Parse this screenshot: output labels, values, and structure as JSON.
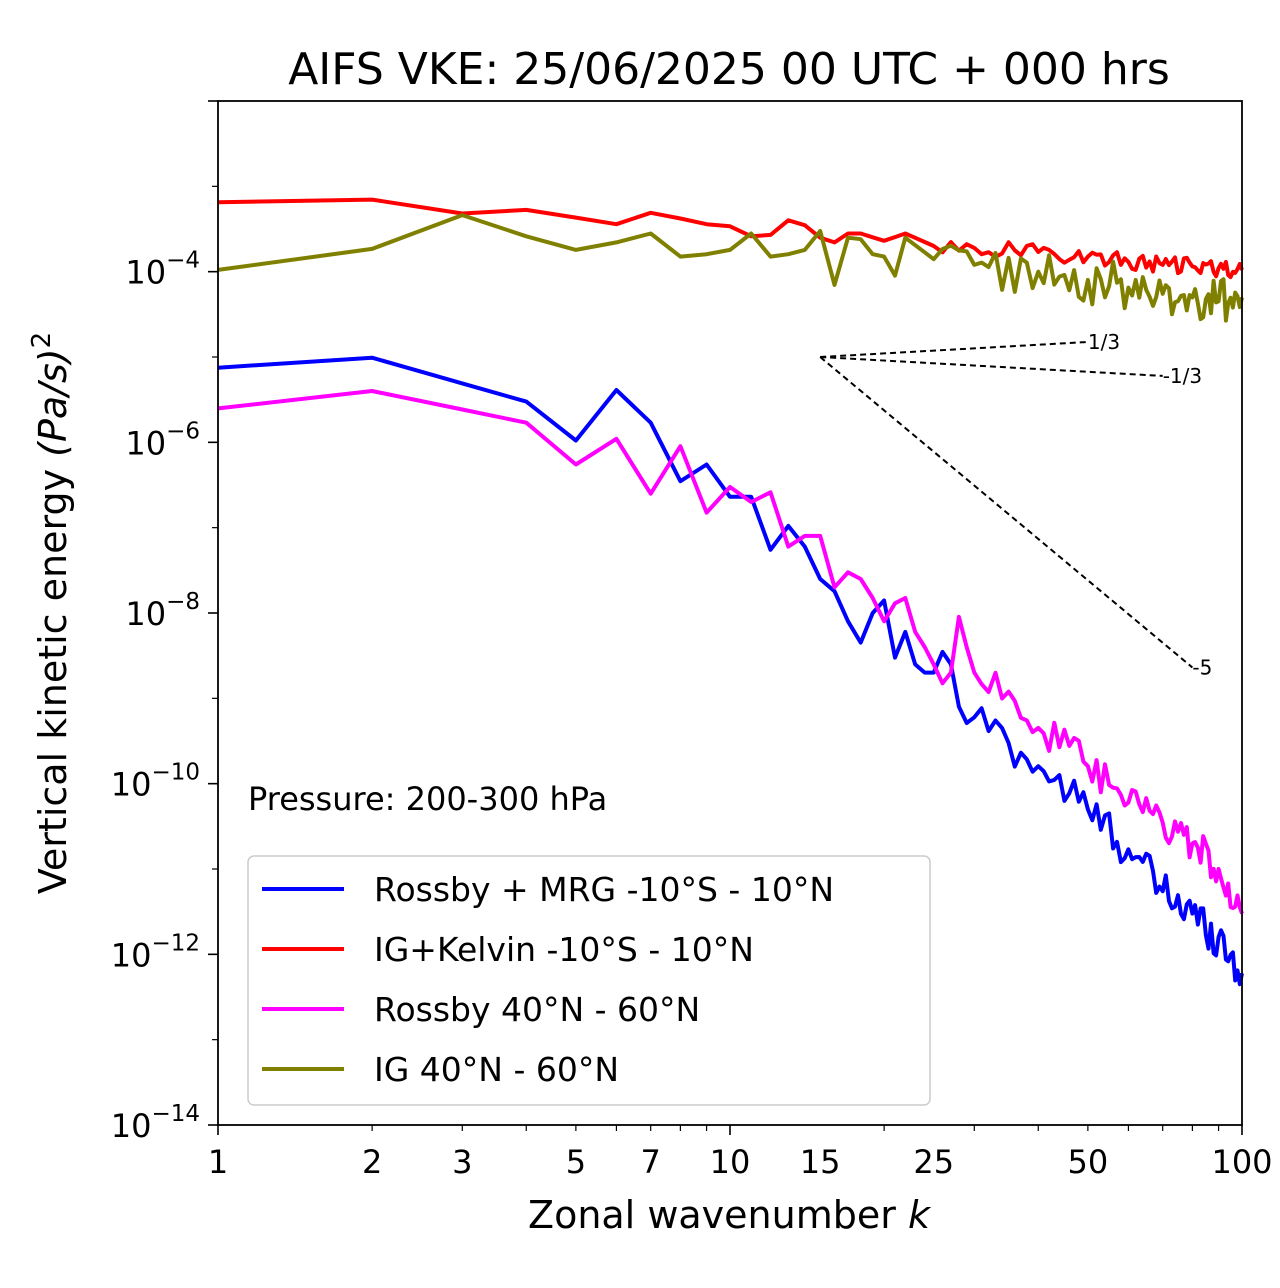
{
  "chart_data": {
    "type": "line",
    "title": "AIFS VKE: 25/06/2025 00 UTC + 000 hrs",
    "xlabel": "Zonal wavenumber k",
    "xlabel_main": "Zonal wavenumber ",
    "xlabel_var": "k",
    "ylabel": "Vertical kinetic energy (Pa/s)^2",
    "ylabel_main": "Vertical kinetic energy ",
    "ylabel_var": "(Pa/s)",
    "ylabel_exp": "2",
    "x_scale": "log",
    "y_scale": "log",
    "xlim": [
      1,
      100
    ],
    "ylim": [
      1e-14,
      0.01
    ],
    "x_ticks": [
      1,
      2,
      3,
      5,
      7,
      10,
      15,
      25,
      50,
      100
    ],
    "y_ticks": [
      {
        "value": 1e-14,
        "base": "10",
        "exp": "−14"
      },
      {
        "value": 1e-12,
        "base": "10",
        "exp": "−12"
      },
      {
        "value": 1e-10,
        "base": "10",
        "exp": "−10"
      },
      {
        "value": 1e-08,
        "base": "10",
        "exp": "−8"
      },
      {
        "value": 1e-06,
        "base": "10",
        "exp": "−6"
      },
      {
        "value": 0.0001,
        "base": "10",
        "exp": "−4"
      }
    ],
    "grid": false,
    "legend_position": "lower-left",
    "annotation": "Pressure: 200-300 hPa",
    "series": [
      {
        "name": "Rossby + MRG -10°S - 10°N",
        "color": "#0000ff",
        "anchors": [
          [
            1,
            7.5e-06
          ],
          [
            2,
            9.8e-06
          ],
          [
            4,
            3e-06
          ],
          [
            5,
            1.05e-06
          ],
          [
            6,
            4.1e-06
          ],
          [
            7,
            1.7e-06
          ],
          [
            8,
            3.5e-07
          ],
          [
            9,
            5.5e-07
          ],
          [
            10,
            2.3e-07
          ],
          [
            11,
            2.3e-07
          ],
          [
            12,
            5.5e-08
          ],
          [
            13,
            1.05e-07
          ],
          [
            14,
            6e-08
          ],
          [
            15,
            2.5e-08
          ],
          [
            16,
            1.8e-08
          ],
          [
            17,
            8e-09
          ],
          [
            18,
            4.5e-09
          ],
          [
            19,
            1e-08
          ],
          [
            20,
            1.4e-08
          ],
          [
            21,
            3e-09
          ],
          [
            22,
            6e-09
          ],
          [
            23,
            2.5e-09
          ],
          [
            24,
            2e-09
          ],
          [
            25,
            2e-09
          ],
          [
            26,
            3.5e-09
          ],
          [
            28,
            8e-10
          ],
          [
            30,
            6e-10
          ],
          [
            35,
            3e-10
          ],
          [
            40,
            1.6e-10
          ],
          [
            50,
            5e-11
          ],
          [
            60,
            1.7e-11
          ],
          [
            70,
            5.5e-12
          ],
          [
            80,
            3e-12
          ],
          [
            90,
            1.6e-12
          ],
          [
            100,
            6e-13
          ]
        ],
        "noise": 0.25
      },
      {
        "name": "IG+Kelvin -10°S - 10°N",
        "color": "#ff0000",
        "anchors": [
          [
            1,
            0.00065
          ],
          [
            2,
            0.0007
          ],
          [
            3,
            0.00048
          ],
          [
            4,
            0.00053
          ],
          [
            5,
            0.00043
          ],
          [
            6,
            0.00036
          ],
          [
            7,
            0.00049
          ],
          [
            8,
            0.00042
          ],
          [
            9,
            0.00036
          ],
          [
            10,
            0.00034
          ],
          [
            11,
            0.00026
          ],
          [
            12,
            0.00027
          ],
          [
            13,
            0.0004
          ],
          [
            14,
            0.00035
          ],
          [
            15,
            0.00025
          ],
          [
            16,
            0.00022
          ],
          [
            17,
            0.00028
          ],
          [
            18,
            0.00028
          ],
          [
            20,
            0.00023
          ],
          [
            22,
            0.00028
          ],
          [
            25,
            0.0002
          ],
          [
            30,
            0.00019
          ],
          [
            40,
            0.00017
          ],
          [
            50,
            0.00015
          ],
          [
            60,
            0.00013
          ],
          [
            70,
            0.00012
          ],
          [
            80,
            0.000115
          ],
          [
            90,
            0.00011
          ],
          [
            100,
            0.000105
          ]
        ],
        "noise": 0.1
      },
      {
        "name": "Rossby 40°N - 60°N",
        "color": "#ff00ff",
        "anchors": [
          [
            1,
            2.5e-06
          ],
          [
            2,
            4e-06
          ],
          [
            4,
            1.7e-06
          ],
          [
            5,
            5.5e-07
          ],
          [
            6,
            1.1e-06
          ],
          [
            7,
            2.5e-07
          ],
          [
            8,
            9e-07
          ],
          [
            9,
            1.5e-07
          ],
          [
            10,
            3e-07
          ],
          [
            11,
            2e-07
          ],
          [
            12,
            2.6e-07
          ],
          [
            13,
            6e-08
          ],
          [
            14,
            8e-08
          ],
          [
            15,
            8e-08
          ],
          [
            16,
            2e-08
          ],
          [
            17,
            3e-08
          ],
          [
            18,
            2.5e-08
          ],
          [
            19,
            1.5e-08
          ],
          [
            20,
            8e-09
          ],
          [
            21,
            1.3e-08
          ],
          [
            22,
            1.5e-08
          ],
          [
            23,
            6e-09
          ],
          [
            24,
            4e-09
          ],
          [
            25,
            2.5e-09
          ],
          [
            26,
            1.5e-09
          ],
          [
            27,
            2e-09
          ],
          [
            28,
            9e-09
          ],
          [
            30,
            2e-09
          ],
          [
            35,
            1.2e-09
          ],
          [
            40,
            4.5e-10
          ],
          [
            50,
            1.6e-10
          ],
          [
            60,
            6e-11
          ],
          [
            70,
            3.5e-11
          ],
          [
            80,
            2e-11
          ],
          [
            90,
            1e-11
          ],
          [
            100,
            3e-12
          ]
        ],
        "noise": 0.22
      },
      {
        "name": "IG 40°N - 60°N",
        "color": "#808000",
        "anchors": [
          [
            1,
            0.000105
          ],
          [
            2,
            0.000185
          ],
          [
            3,
            0.00046
          ],
          [
            4,
            0.00026
          ],
          [
            5,
            0.00018
          ],
          [
            6,
            0.00022
          ],
          [
            7,
            0.00028
          ],
          [
            8,
            0.00015
          ],
          [
            9,
            0.00016
          ],
          [
            10,
            0.00018
          ],
          [
            11,
            0.00028
          ],
          [
            12,
            0.00015
          ],
          [
            13,
            0.00016
          ],
          [
            14,
            0.00018
          ],
          [
            15,
            0.0003
          ],
          [
            16,
            7e-05
          ],
          [
            17,
            0.00025
          ],
          [
            18,
            0.00024
          ],
          [
            19,
            0.00016
          ],
          [
            20,
            0.00015
          ],
          [
            21,
            9e-05
          ],
          [
            22,
            0.00025
          ],
          [
            25,
            0.00014
          ],
          [
            30,
            0.00012
          ],
          [
            40,
            0.0001
          ],
          [
            50,
            8e-05
          ],
          [
            60,
            6.5e-05
          ],
          [
            70,
            5.5e-05
          ],
          [
            80,
            5e-05
          ],
          [
            90,
            4.5e-05
          ],
          [
            100,
            5e-05
          ]
        ],
        "noise": 0.28
      }
    ],
    "reference_slopes": [
      {
        "label": "1/3",
        "slope": 0.3333,
        "from": [
          15,
          1e-05
        ],
        "to": [
          50,
          1.5e-05
        ]
      },
      {
        "label": "-1/3",
        "slope": -0.3333,
        "from": [
          15,
          1e-05
        ],
        "to": [
          70,
          6e-06
        ]
      },
      {
        "label": "-5",
        "slope": -5,
        "from": [
          15,
          1e-05
        ],
        "to": [
          80,
          2.3e-09
        ]
      }
    ]
  }
}
